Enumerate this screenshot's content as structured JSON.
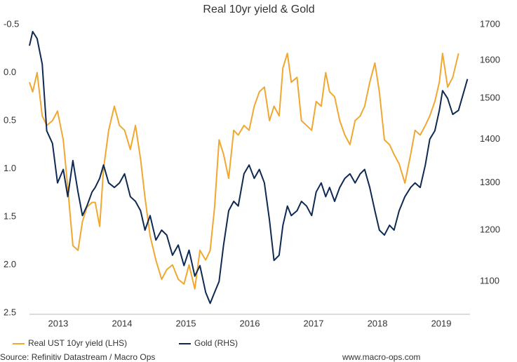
{
  "chart_data": {
    "type": "line",
    "title": "Real 10yr yield & Gold",
    "source": "Source: Refinitiv Datastream / Macro Ops",
    "website": "www.macro-ops.com",
    "x": [
      2013.05,
      2013.1,
      2013.17,
      2013.25,
      2013.32,
      2013.41,
      2013.49,
      2013.58,
      2013.65,
      2013.73,
      2013.81,
      2013.88,
      2013.95,
      2014.03,
      2014.08,
      2014.15,
      2014.21,
      2014.29,
      2014.38,
      2014.46,
      2014.54,
      2014.63,
      2014.71,
      2014.79,
      2014.86,
      2014.94,
      2015.03,
      2015.12,
      2015.2,
      2015.29,
      2015.38,
      2015.47,
      2015.55,
      2015.64,
      2015.72,
      2015.81,
      2015.88,
      2015.95,
      2016.02,
      2016.09,
      2016.17,
      2016.25,
      2016.32,
      2016.41,
      2016.49,
      2016.57,
      2016.65,
      2016.73,
      2016.81,
      2016.88,
      2016.96,
      2017.02,
      2017.09,
      2017.15,
      2017.24,
      2017.31,
      2017.39,
      2017.47,
      2017.54,
      2017.62,
      2017.69,
      2017.75,
      2017.83,
      2017.91,
      2017.99,
      2018.07,
      2018.15,
      2018.23,
      2018.3,
      2018.38,
      2018.46,
      2018.53,
      2018.61,
      2018.69,
      2018.76,
      2018.84,
      2018.93,
      2019.02,
      2019.09,
      2019.17,
      2019.25,
      2019.32,
      2019.4,
      2019.47,
      2019.52,
      2019.6,
      2019.68,
      2019.77,
      2019.91
    ],
    "series": [
      {
        "name": "Real UST 10yr yield (LHS)",
        "color": "#f0a830",
        "axis": "y",
        "values": [
          0.1,
          0.2,
          0.0,
          0.45,
          0.55,
          0.5,
          0.4,
          0.7,
          1.2,
          1.8,
          1.85,
          1.55,
          1.4,
          1.35,
          1.35,
          1.6,
          1.0,
          0.6,
          0.35,
          0.55,
          0.6,
          0.8,
          0.55,
          0.9,
          1.3,
          1.7,
          1.95,
          2.15,
          2.05,
          2.0,
          2.15,
          2.2,
          2.0,
          2.25,
          1.85,
          1.95,
          1.85,
          1.4,
          0.7,
          0.85,
          1.1,
          0.6,
          0.65,
          0.55,
          0.6,
          0.35,
          0.2,
          0.15,
          0.5,
          0.35,
          0.45,
          -0.05,
          -0.2,
          0.1,
          0.05,
          0.5,
          0.55,
          0.6,
          0.3,
          0.35,
          0.0,
          0.2,
          0.25,
          0.5,
          0.65,
          0.75,
          0.5,
          0.45,
          0.35,
          0.1,
          -0.1,
          0.2,
          0.7,
          0.75,
          0.85,
          0.95,
          1.15,
          0.85,
          0.6,
          0.65,
          0.55,
          0.45,
          0.3,
          0.1,
          -0.2,
          0.15,
          0.05,
          -0.2,
          null
        ]
      },
      {
        "name": "Gold (RHS)",
        "color": "#0e2a52",
        "axis": "y2",
        "values": [
          1640,
          1680,
          1660,
          1590,
          1420,
          1390,
          1300,
          1330,
          1270,
          1350,
          1280,
          1230,
          1250,
          1280,
          1290,
          1310,
          1340,
          1300,
          1290,
          1300,
          1320,
          1270,
          1260,
          1240,
          1200,
          1230,
          1180,
          1200,
          1190,
          1150,
          1170,
          1130,
          1160,
          1110,
          1130,
          1080,
          1060,
          1080,
          1100,
          1170,
          1240,
          1260,
          1250,
          1320,
          1340,
          1310,
          1330,
          1300,
          1220,
          1140,
          1150,
          1210,
          1250,
          1230,
          1240,
          1260,
          1250,
          1230,
          1280,
          1300,
          1270,
          1290,
          1260,
          1290,
          1310,
          1320,
          1300,
          1320,
          1330,
          1290,
          1240,
          1200,
          1190,
          1210,
          1200,
          1240,
          1270,
          1290,
          1300,
          1290,
          1340,
          1400,
          1420,
          1470,
          1520,
          1500,
          1460,
          1470,
          1550
        ]
      }
    ],
    "xlim": [
      2013.05,
      2019.95
    ],
    "xticks": [
      {
        "value": 2013.5,
        "label": "2013"
      },
      {
        "value": 2014.5,
        "label": "2014"
      },
      {
        "value": 2015.5,
        "label": "2015"
      },
      {
        "value": 2016.5,
        "label": "2016"
      },
      {
        "value": 2017.5,
        "label": "2017"
      },
      {
        "value": 2018.5,
        "label": "2018"
      },
      {
        "value": 2019.5,
        "label": "2019"
      }
    ],
    "ylim": [
      2.5,
      -0.5
    ],
    "yticks": [
      -0.5,
      {
        "value": 0,
        "label": "0.0"
      },
      0.5,
      {
        "value": 1,
        "label": "1.0"
      },
      1.5,
      {
        "value": 2,
        "label": "2.0"
      },
      2.5
    ],
    "y2lim": [
      1043,
      1700
    ],
    "y2scale": "log",
    "y2ticks": [
      1100,
      1200,
      1300,
      1400,
      1500,
      1600,
      1700
    ],
    "legend": "bottom"
  }
}
